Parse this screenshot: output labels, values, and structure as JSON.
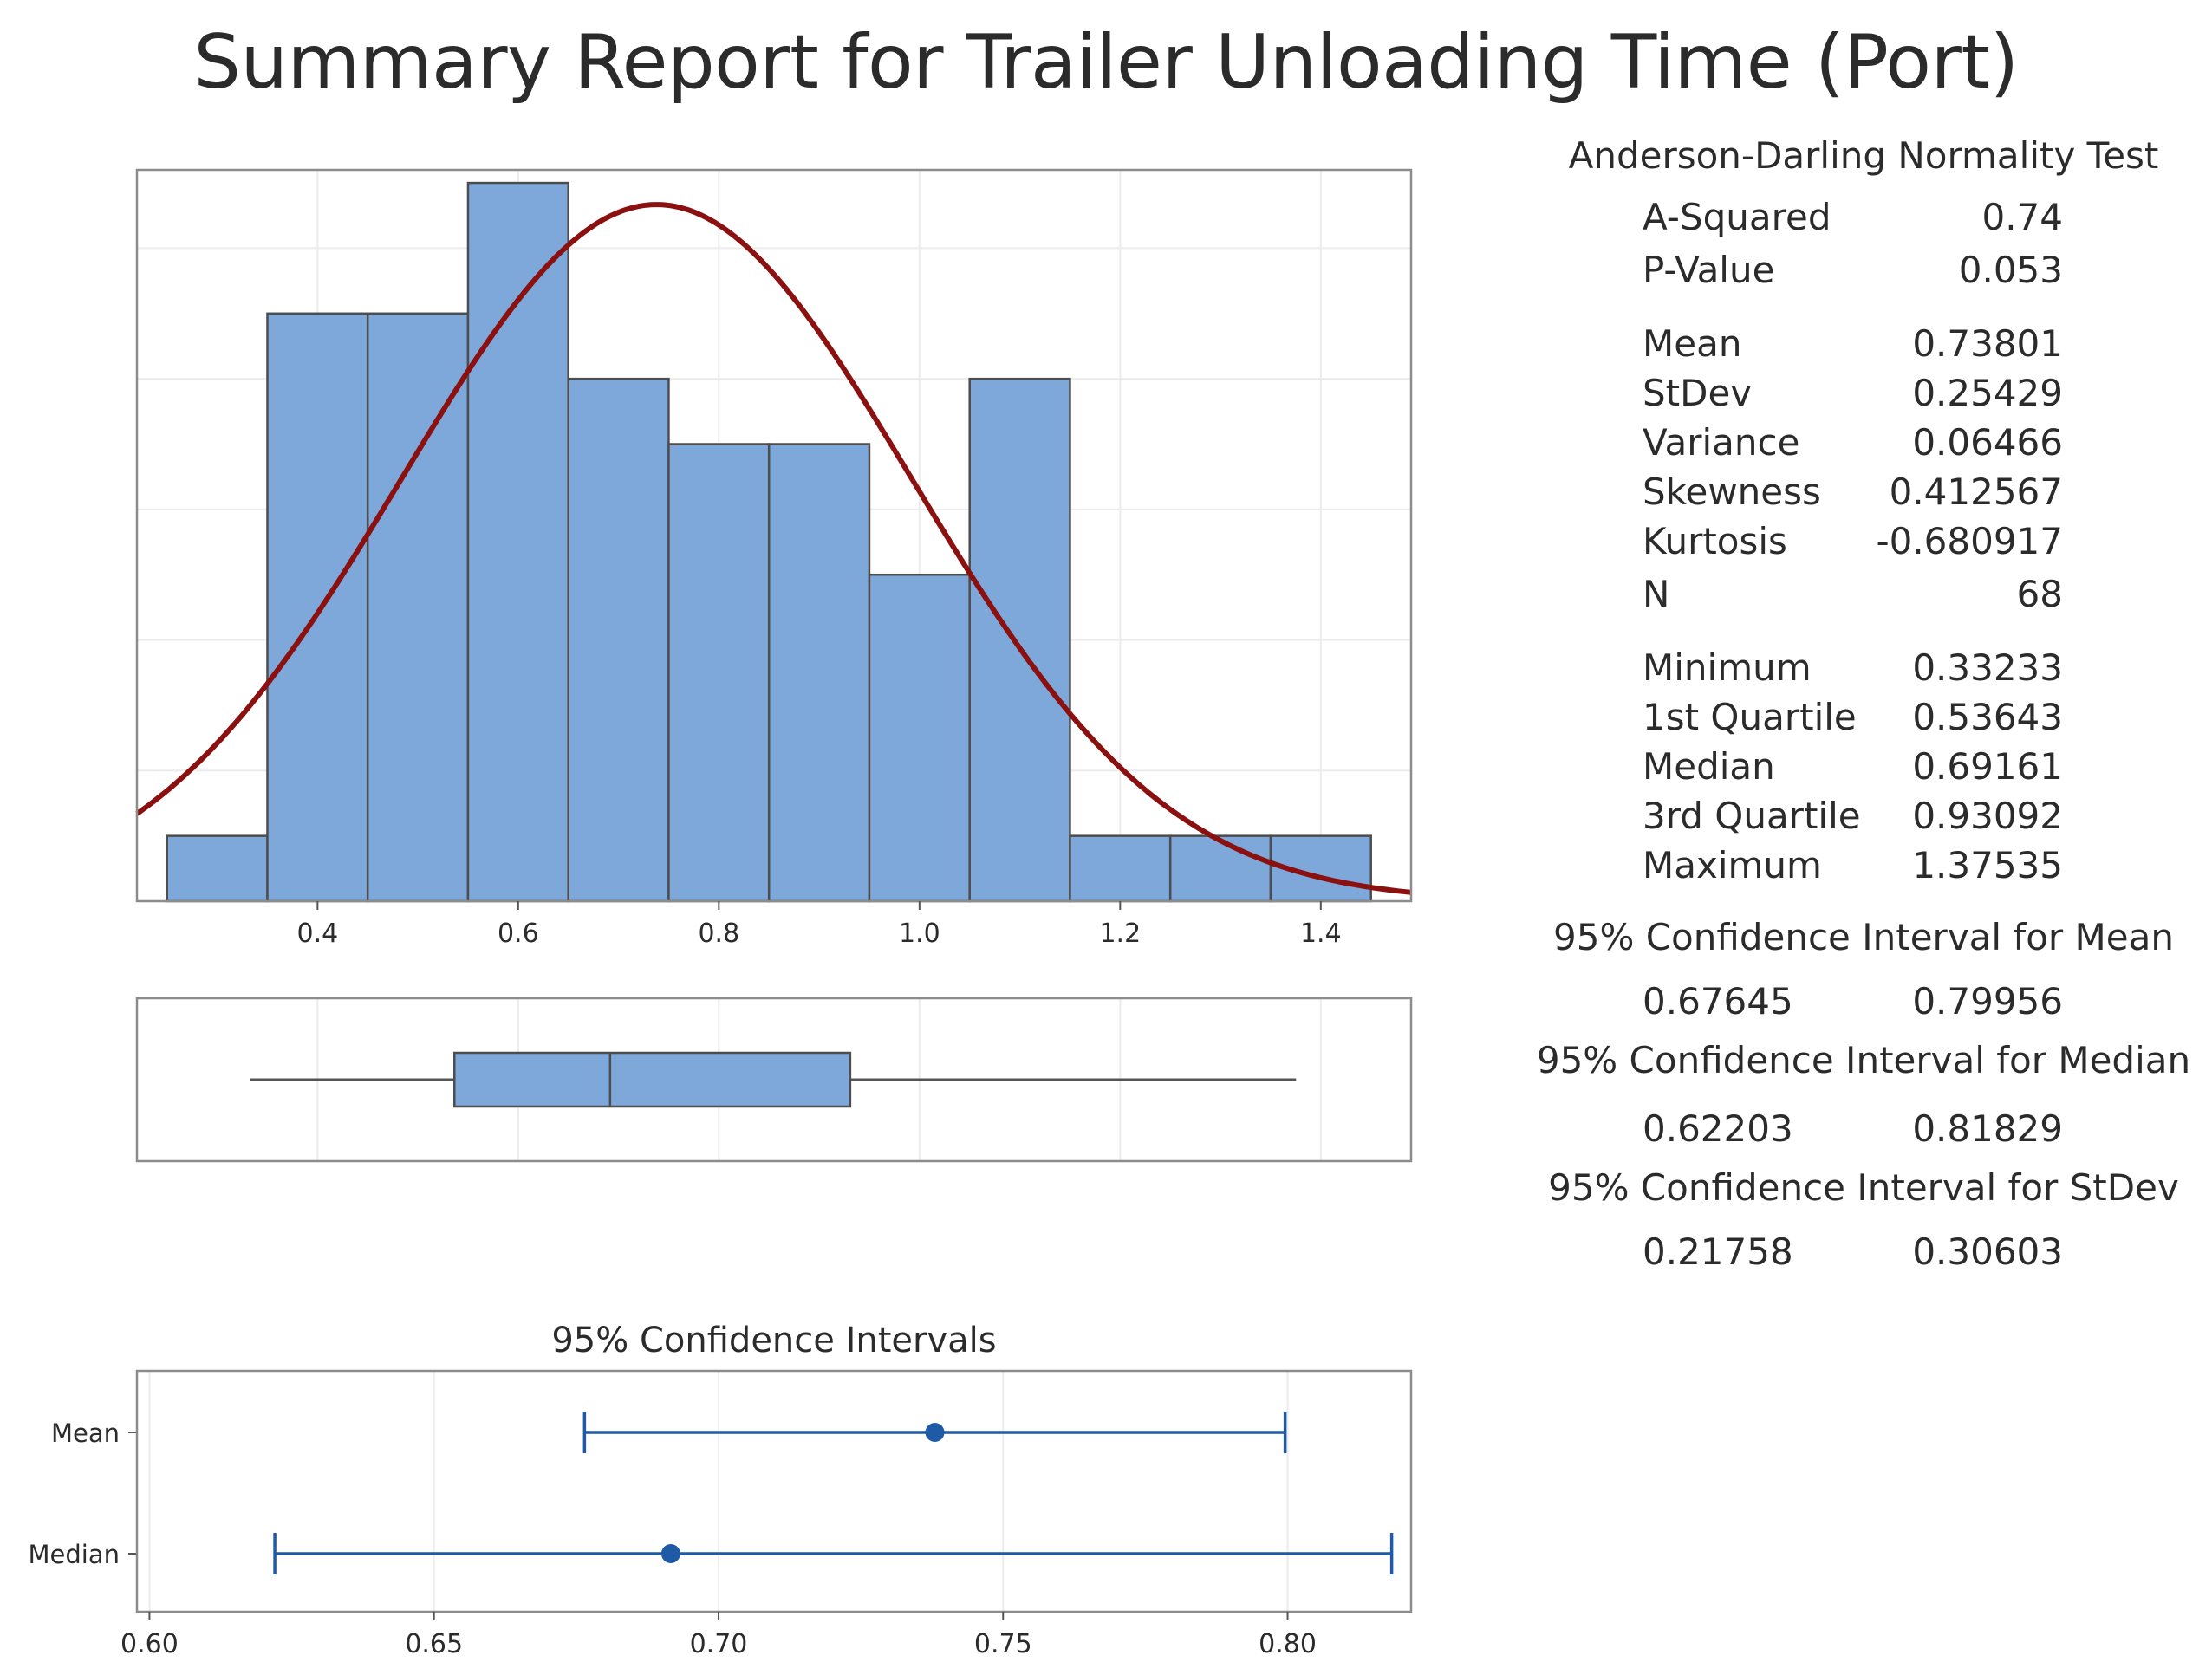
{
  "report": {
    "title": "Summary Report for Trailer Unloading Time (Port)"
  },
  "stats_panel": {
    "normality": {
      "heading": "Anderson-Darling Normality Test",
      "rows": [
        {
          "label": "A-Squared",
          "value": "0.74"
        },
        {
          "label": "P-Value",
          "value": "0.053"
        }
      ]
    },
    "moments": [
      {
        "label": "Mean",
        "value": "0.73801"
      },
      {
        "label": "StDev",
        "value": "0.25429"
      },
      {
        "label": "Variance",
        "value": "0.06466"
      },
      {
        "label": "Skewness",
        "value": "0.412567"
      },
      {
        "label": "Kurtosis",
        "value": "-0.680917"
      },
      {
        "label": "N",
        "value": "68"
      }
    ],
    "quantiles": [
      {
        "label": "Minimum",
        "value": "0.33233"
      },
      {
        "label": "1st Quartile",
        "value": "0.53643"
      },
      {
        "label": "Median",
        "value": "0.69161"
      },
      {
        "label": "3rd Quartile",
        "value": "0.93092"
      },
      {
        "label": "Maximum",
        "value": "1.37535"
      }
    ],
    "intervals": [
      {
        "heading": "95% Confidence Interval for Mean",
        "lower": "0.67645",
        "upper": "0.79956"
      },
      {
        "heading": "95% Confidence Interval for Median",
        "lower": "0.62203",
        "upper": "0.81829"
      },
      {
        "heading": "95% Confidence Interval for StDev",
        "lower": "0.21758",
        "upper": "0.30603"
      }
    ]
  },
  "chart_data": [
    {
      "type": "bar",
      "subtype": "histogram",
      "title": "",
      "xlabel": "",
      "ylabel": "",
      "bin_edges": [
        0.25,
        0.35,
        0.45,
        0.55,
        0.65,
        0.75,
        0.85,
        0.95,
        1.05,
        1.15,
        1.25,
        1.35,
        1.45
      ],
      "counts": [
        1,
        9,
        9,
        11,
        8,
        7,
        7,
        5,
        8,
        1,
        1,
        1
      ],
      "xlim": [
        0.22,
        1.49
      ],
      "ylim": [
        0,
        11.2
      ],
      "xticks": [
        "0.4",
        "0.6",
        "0.8",
        "1.0",
        "1.2",
        "1.4"
      ],
      "xtick_values": [
        0.4,
        0.6,
        0.8,
        1.0,
        1.2,
        1.4
      ],
      "grid": true,
      "fit_curve": {
        "type": "normal",
        "mean": 0.73801,
        "stdev": 0.25429,
        "n": 68,
        "bin_width": 0.1
      },
      "colors": {
        "bars": "#7ea7da",
        "bar_edge": "#4d4d4d",
        "curve": "#8b1010"
      }
    },
    {
      "type": "box",
      "title": "",
      "xlim": [
        0.22,
        1.49
      ],
      "whisker_low": 0.33233,
      "q1": 0.53643,
      "median": 0.69161,
      "q3": 0.93092,
      "whisker_high": 1.37535,
      "colors": {
        "box": "#7ea7da",
        "edge": "#4d4d4d"
      }
    },
    {
      "type": "scatter",
      "subtype": "interval_plot",
      "title": "95% Confidence Intervals",
      "categories": [
        "Mean",
        "Median"
      ],
      "estimates": [
        0.73801,
        0.69161
      ],
      "lower": [
        0.67645,
        0.62203
      ],
      "upper": [
        0.79956,
        0.81829
      ],
      "xlim": [
        0.5978,
        0.8217
      ],
      "xticks": [
        "0.60",
        "0.65",
        "0.70",
        "0.75",
        "0.80"
      ],
      "xtick_values": [
        0.6,
        0.65,
        0.7,
        0.75,
        0.8
      ],
      "grid": true,
      "colors": {
        "interval": "#1f5aa6"
      }
    }
  ]
}
